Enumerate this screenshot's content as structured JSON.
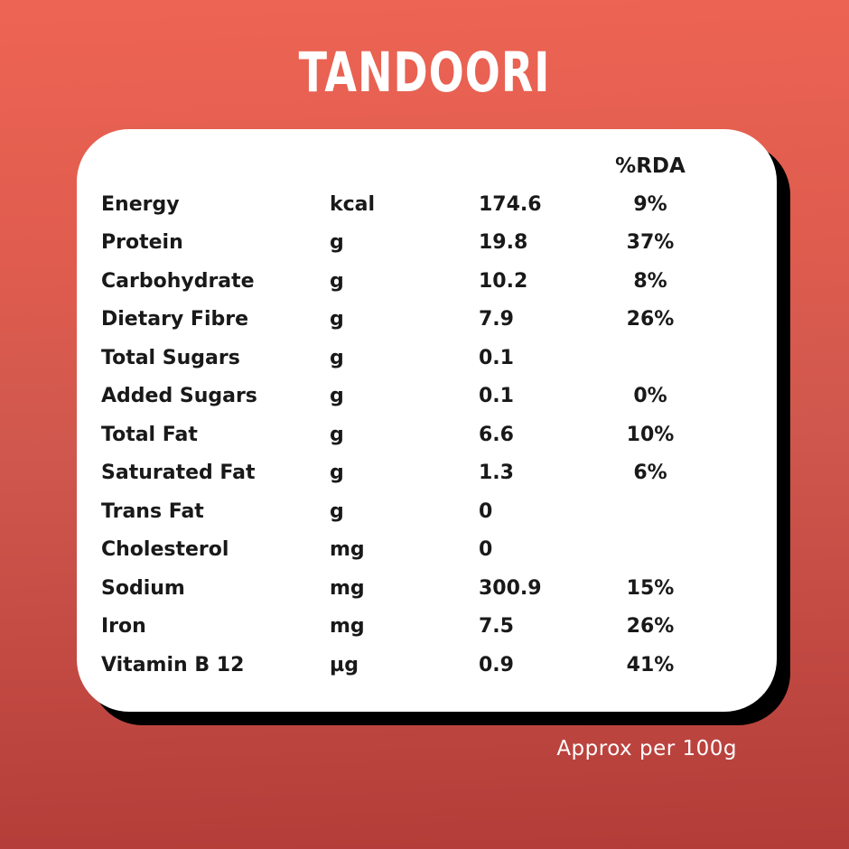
{
  "title": "TANDOORI",
  "footer_note": "Approx per 100g",
  "colors": {
    "background_top": "#ee6454",
    "background_middle": "#cf574d",
    "background_bottom": "#b43c38",
    "card_background": "#ffffff",
    "card_shadow": "#000000",
    "text": "#191919",
    "title_text": "#ffffff"
  },
  "table": {
    "rda_header": "%RDA",
    "rows": [
      {
        "label": "Energy",
        "unit": "kcal",
        "value": "174.6",
        "rda": "9%"
      },
      {
        "label": "Protein",
        "unit": "g",
        "value": "19.8",
        "rda": "37%"
      },
      {
        "label": "Carbohydrate",
        "unit": "g",
        "value": "10.2",
        "rda": "8%"
      },
      {
        "label": "Dietary Fibre",
        "unit": "g",
        "value": "7.9",
        "rda": "26%"
      },
      {
        "label": "Total Sugars",
        "unit": "g",
        "value": "0.1",
        "rda": ""
      },
      {
        "label": "Added Sugars",
        "unit": "g",
        "value": "0.1",
        "rda": "0%"
      },
      {
        "label": "Total Fat",
        "unit": "g",
        "value": "6.6",
        "rda": "10%"
      },
      {
        "label": "Saturated Fat",
        "unit": "g",
        "value": "1.3",
        "rda": "6%"
      },
      {
        "label": "Trans Fat",
        "unit": "g",
        "value": "0",
        "rda": ""
      },
      {
        "label": "Cholesterol",
        "unit": "mg",
        "value": "0",
        "rda": ""
      },
      {
        "label": "Sodium",
        "unit": "mg",
        "value": "300.9",
        "rda": "15%"
      },
      {
        "label": "Iron",
        "unit": "mg",
        "value": "7.5",
        "rda": "26%"
      },
      {
        "label": "Vitamin B 12",
        "unit": "µg",
        "value": "0.9",
        "rda": "41%"
      }
    ]
  }
}
